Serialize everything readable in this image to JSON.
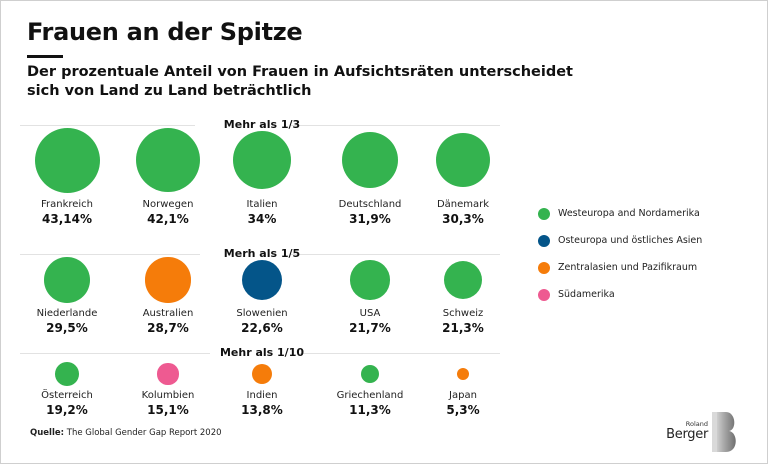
{
  "title": "Frauen an der Spitze",
  "subtitle": "Der prozentuale Anteil von Frauen in Aufsichtsräten unterscheidet sich von Land zu Land beträchtlich",
  "source_label": "Quelle:",
  "source_text": " The Global Gender Gap Report 2020",
  "logo": {
    "small": "Roland",
    "large": "Berger"
  },
  "colors": {
    "Westeuropa and Nordamerika": "#34b34f",
    "Osteuropa und östliches Asien": "#045589",
    "Zentralasien und  Pazifikraum": "#f57c0a",
    "Südamerika": "#ee5a91"
  },
  "chart_data": {
    "type": "bubble",
    "title": "Frauen an der Spitze",
    "subtitle": "Der prozentuale Anteil von Frauen in Aufsichtsräten unterscheidet sich von Land zu Land beträchtlich",
    "unit": "%",
    "legend_position": "right",
    "legend": [
      {
        "label": "Westeuropa and Nordamerika",
        "color": "#34b34f"
      },
      {
        "label": "Osteuropa und östliches Asien",
        "color": "#045589"
      },
      {
        "label": "Zentralasien und  Pazifikraum",
        "color": "#f57c0a"
      },
      {
        "label": "Südamerika",
        "color": "#ee5a91"
      }
    ],
    "tiers": [
      {
        "label": "Mehr als 1/3",
        "items": [
          {
            "country": "Frankreich",
            "value": 43.14,
            "value_label": "43,14%",
            "region": "Westeuropa and Nordamerika"
          },
          {
            "country": "Norwegen",
            "value": 42.1,
            "value_label": "42,1%",
            "region": "Westeuropa and Nordamerika"
          },
          {
            "country": "Italien",
            "value": 34,
            "value_label": "34%",
            "region": "Westeuropa and Nordamerika"
          },
          {
            "country": "Deutschland",
            "value": 31.9,
            "value_label": "31,9%",
            "region": "Westeuropa and Nordamerika"
          },
          {
            "country": "Dänemark",
            "value": 30.3,
            "value_label": "30,3%",
            "region": "Westeuropa and Nordamerika"
          }
        ]
      },
      {
        "label": "Merh als 1/5",
        "items": [
          {
            "country": "Niederlande",
            "value": 29.5,
            "value_label": "29,5%",
            "region": "Westeuropa and Nordamerika"
          },
          {
            "country": "Australien",
            "value": 28.7,
            "value_label": "28,7%",
            "region": "Zentralasien und  Pazifikraum"
          },
          {
            "country": "Slowenien",
            "value": 22.6,
            "value_label": "22,6%",
            "region": "Osteuropa und östliches Asien"
          },
          {
            "country": "USA",
            "value": 21.7,
            "value_label": "21,7%",
            "region": "Westeuropa and Nordamerika"
          },
          {
            "country": "Schweiz",
            "value": 21.3,
            "value_label": "21,3%",
            "region": "Westeuropa and Nordamerika"
          }
        ]
      },
      {
        "label": "Mehr als 1/10",
        "items": [
          {
            "country": "Österreich",
            "value": 19.2,
            "value_label": "19,2%",
            "region": "Westeuropa and Nordamerika"
          },
          {
            "country": "Kolumbien",
            "value": 15.1,
            "value_label": "15,1%",
            "region": "Südamerika"
          },
          {
            "country": "Indien",
            "value": 13.8,
            "value_label": "13,8%",
            "region": "Zentralasien und  Pazifikraum"
          },
          {
            "country": "Griechenland",
            "value": 11.3,
            "value_label": "11,3%",
            "region": "Westeuropa and Nordamerika"
          },
          {
            "country": "Japan",
            "value": 5.3,
            "value_label": "5,3%",
            "region": "Zentralasien und  Pazifikraum"
          }
        ]
      }
    ]
  }
}
